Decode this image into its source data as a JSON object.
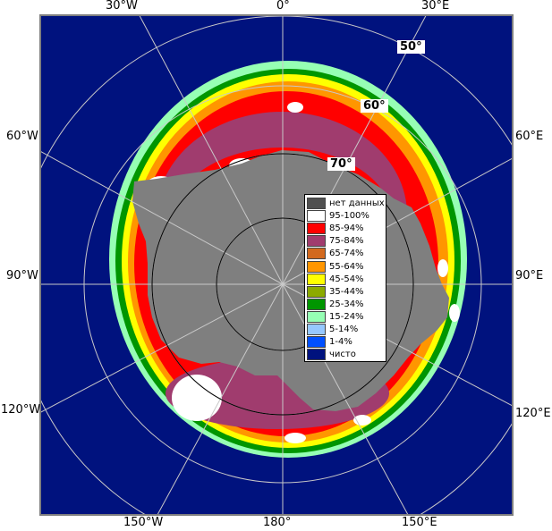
{
  "map": {
    "longitude_labels_top": [
      "30°W",
      "0°",
      "30°E"
    ],
    "longitude_labels_bottom": [
      "150°W",
      "180°",
      "150°E"
    ],
    "longitude_labels_left": [
      "60°W",
      "90°W",
      "120°W"
    ],
    "longitude_labels_right": [
      "60°E",
      "90°E",
      "120°E"
    ],
    "latitude_labels": [
      "50°",
      "60°",
      "70°"
    ],
    "colors": {
      "ocean": "#00127e",
      "land": "#7f7f7f",
      "grid": "#c8c8c8",
      "frame": "#7f7f7f"
    }
  },
  "legend": {
    "items": [
      {
        "label": "нет данных",
        "color": "#505050"
      },
      {
        "label": "95-100%",
        "color": "#ffffff"
      },
      {
        "label": "85-94%",
        "color": "#ff0000"
      },
      {
        "label": "75-84%",
        "color": "#a03c6e"
      },
      {
        "label": "65-74%",
        "color": "#d2691e"
      },
      {
        "label": "55-64%",
        "color": "#ff9600"
      },
      {
        "label": "45-54%",
        "color": "#ffff00"
      },
      {
        "label": "35-44%",
        "color": "#8caa00"
      },
      {
        "label": "25-34%",
        "color": "#009600"
      },
      {
        "label": "15-24%",
        "color": "#96ffb4"
      },
      {
        "label": "5-14%",
        "color": "#96c8ff"
      },
      {
        "label": "1-4%",
        "color": "#0050ff"
      },
      {
        "label": "чисто",
        "color": "#00127e"
      }
    ]
  }
}
